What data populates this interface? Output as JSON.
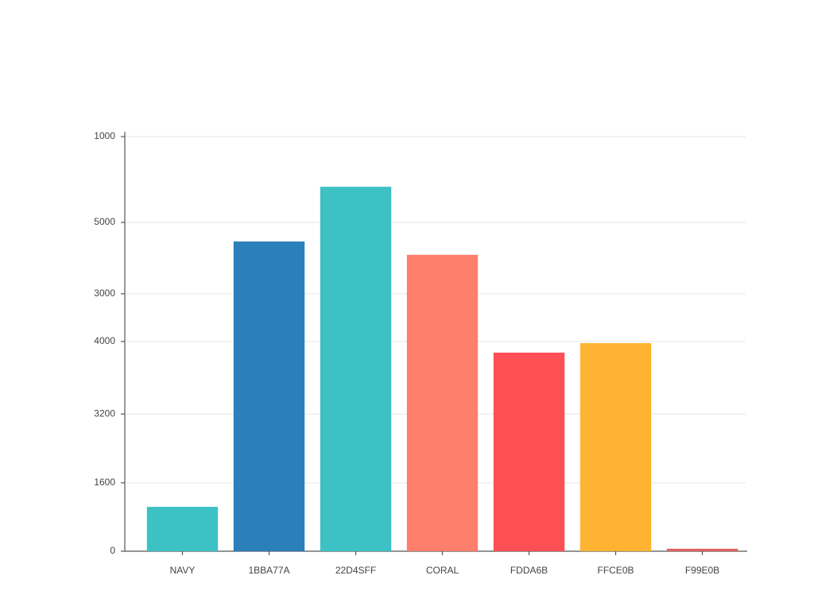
{
  "chart_data": {
    "type": "bar",
    "categories": [
      "NAVY",
      "1BBA77A",
      "22D4SFF",
      "CORAL",
      "FDDA6B",
      "FFCE0B",
      "F99E0B"
    ],
    "series": [
      {
        "colors": [
          "#3cc1c5",
          "#2b7fba",
          "#3dc1c4",
          "#fd7f6c",
          "#fe4f55",
          "#feb332",
          "#e0625e"
        ],
        "values": [
          107,
          747,
          879,
          715,
          479,
          502,
          6
        ]
      }
    ],
    "ylim": [
      0,
      1000
    ],
    "yticks": [
      0,
      {
        "value": 165,
        "label": "1600"
      },
      {
        "value": 331,
        "label": "3200"
      },
      {
        "value": 506,
        "label": "4000"
      },
      {
        "value": 621,
        "label": "3000"
      },
      {
        "value": 793,
        "label": "5000"
      },
      1000
    ],
    "grid": true
  }
}
